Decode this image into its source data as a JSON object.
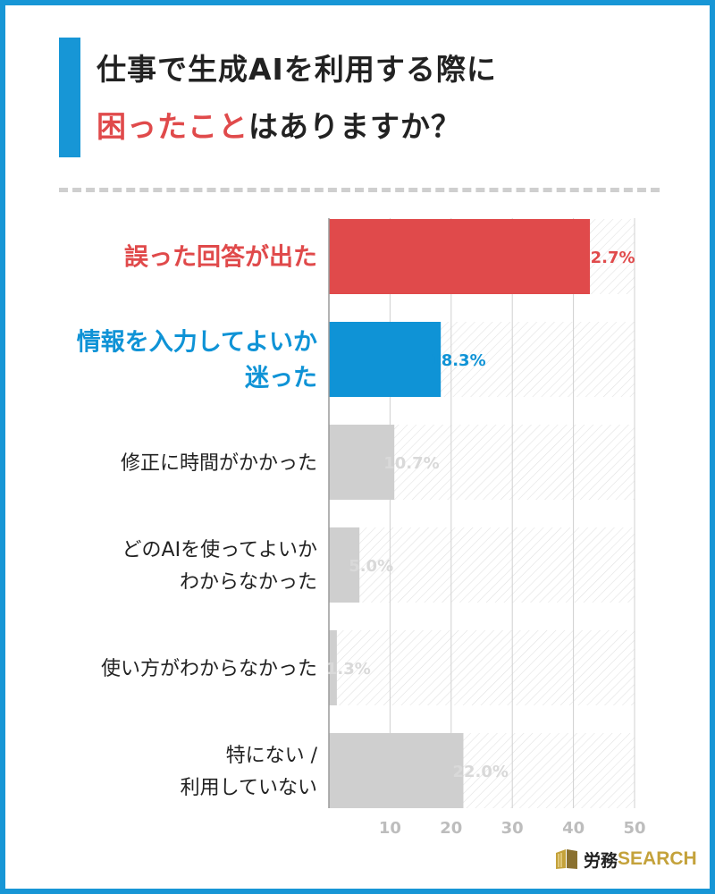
{
  "header": {
    "title_line1": "仕事で生成AIを利用する際に",
    "title_line2_highlight": "困ったこと",
    "title_line2_rest": "はありますか？"
  },
  "chart_data": {
    "type": "bar",
    "orientation": "horizontal",
    "categories": [
      [
        "誤った回答が出た"
      ],
      [
        "情報を入力してよいか",
        "迷った"
      ],
      [
        "修正に時間がかかった"
      ],
      [
        "どのAIを使ってよいか",
        "わからなかった"
      ],
      [
        "使い方がわからなかった"
      ],
      [
        "特にない /",
        "利用していない"
      ]
    ],
    "values": [
      42.7,
      18.3,
      10.7,
      5.0,
      1.3,
      22.0
    ],
    "value_labels": [
      "42.7%",
      "18.3%",
      "10.7%",
      "5.0%",
      "1.3%",
      "22.0%"
    ],
    "xlim": [
      0,
      50
    ],
    "xticks": [
      10,
      20,
      30,
      40,
      50
    ],
    "grid": true,
    "bar_colors": [
      "#e04a4b",
      "#0f93d6",
      "#cfcfcf",
      "#cfcfcf",
      "#cfcfcf",
      "#cfcfcf"
    ],
    "category_colors": [
      "#e04a4b",
      "#0f93d6",
      "#222222",
      "#222222",
      "#222222",
      "#222222"
    ],
    "value_label_colors": [
      "#e04a4b",
      "#0f93d6",
      "#d9d9d9",
      "#d9d9d9",
      "#d9d9d9",
      "#d9d9d9"
    ]
  },
  "colors": {
    "frame": "#1796d6",
    "title_bar": "#1796d6",
    "title_highlight": "#e04a4b",
    "title_text": "#222222",
    "track_hatch": "#e2e2e2",
    "gridline": "#d0d0d0",
    "axis": "#9a9a9a",
    "tick_text": "#bdbdbd",
    "logo_accent": "#c4a23b"
  },
  "logo": {
    "jp": "労務",
    "en": "SEARCH"
  }
}
